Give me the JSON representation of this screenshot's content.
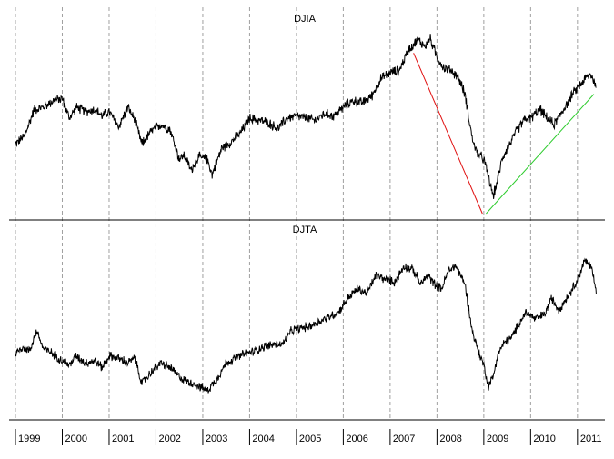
{
  "chart_data": [
    {
      "type": "line",
      "title": "DJIA",
      "xlabel": "",
      "ylabel": "",
      "x_ticks": [
        "1999",
        "2000",
        "2001",
        "2002",
        "2003",
        "2004",
        "2005",
        "2006",
        "2007",
        "2008",
        "2009",
        "2010",
        "2011"
      ],
      "xlim": [
        1999.0,
        2011.45
      ],
      "ylim": [
        6000,
        14500
      ],
      "grid": "vertical-dashed",
      "series": [
        {
          "color": "#000000",
          "x": [
            1999.0,
            1999.2,
            1999.4,
            1999.6,
            1999.8,
            2000.0,
            2000.15,
            2000.3,
            2000.5,
            2000.7,
            2000.85,
            2001.0,
            2001.2,
            2001.4,
            2001.55,
            2001.7,
            2001.9,
            2002.1,
            2002.3,
            2002.5,
            2002.6,
            2002.75,
            2002.9,
            2003.1,
            2003.2,
            2003.4,
            2003.6,
            2003.8,
            2004.0,
            2004.2,
            2004.4,
            2004.6,
            2004.8,
            2005.0,
            2005.2,
            2005.4,
            2005.6,
            2005.8,
            2006.0,
            2006.2,
            2006.4,
            2006.6,
            2006.8,
            2007.0,
            2007.2,
            2007.4,
            2007.6,
            2007.75,
            2007.85,
            2008.0,
            2008.15,
            2008.3,
            2008.45,
            2008.6,
            2008.75,
            2008.85,
            2009.0,
            2009.1,
            2009.2,
            2009.3,
            2009.4,
            2009.55,
            2009.7,
            2009.85,
            2010.0,
            2010.2,
            2010.35,
            2010.5,
            2010.7,
            2010.9,
            2011.0,
            2011.2,
            2011.3,
            2011.4
          ],
          "y": [
            9200,
            9600,
            10800,
            10900,
            11200,
            11300,
            10400,
            10900,
            10700,
            10800,
            10500,
            10700,
            10000,
            10900,
            10300,
            9200,
            9800,
            10100,
            9900,
            8500,
            8700,
            8000,
            8600,
            8500,
            7800,
            9000,
            9300,
            9700,
            10400,
            10300,
            10200,
            9900,
            10400,
            10500,
            10400,
            10300,
            10600,
            10500,
            10900,
            11200,
            11100,
            11400,
            12200,
            12500,
            12600,
            13600,
            14000,
            13700,
            14100,
            13200,
            12700,
            12600,
            12300,
            11500,
            9500,
            8800,
            8500,
            7700,
            6800,
            7600,
            8600,
            9200,
            9800,
            10300,
            10400,
            10800,
            10400,
            10100,
            10800,
            11500,
            11800,
            12300,
            12400,
            11800
          ]
        }
      ],
      "annotations": [
        {
          "type": "trendline",
          "color": "#e01010",
          "x": [
            2007.5,
            2008.97
          ],
          "y": [
            13400,
            6000
          ]
        },
        {
          "type": "trendline",
          "color": "#2ecc2e",
          "x": [
            2009.05,
            2011.35
          ],
          "y": [
            6000,
            11500
          ]
        }
      ]
    },
    {
      "type": "line",
      "title": "DJTA",
      "xlabel": "",
      "ylabel": "",
      "x_ticks": [
        "1999",
        "2000",
        "2001",
        "2002",
        "2003",
        "2004",
        "2005",
        "2006",
        "2007",
        "2008",
        "2009",
        "2010",
        "2011"
      ],
      "xlim": [
        1999.0,
        2011.45
      ],
      "ylim": [
        1900,
        5500
      ],
      "grid": "vertical-dashed",
      "series": [
        {
          "color": "#000000",
          "x": [
            1999.0,
            1999.15,
            1999.3,
            1999.45,
            1999.6,
            1999.8,
            2000.0,
            2000.15,
            2000.3,
            2000.5,
            2000.7,
            2000.85,
            2001.0,
            2001.2,
            2001.4,
            2001.55,
            2001.7,
            2001.9,
            2002.1,
            2002.3,
            2002.5,
            2002.65,
            2002.8,
            2002.9,
            2003.1,
            2003.3,
            2003.5,
            2003.7,
            2003.9,
            2004.1,
            2004.3,
            2004.5,
            2004.7,
            2004.9,
            2005.1,
            2005.3,
            2005.5,
            2005.7,
            2005.9,
            2006.1,
            2006.3,
            2006.5,
            2006.7,
            2006.9,
            2007.1,
            2007.3,
            2007.5,
            2007.65,
            2007.8,
            2007.95,
            2008.1,
            2008.25,
            2008.4,
            2008.5,
            2008.6,
            2008.75,
            2008.9,
            2009.0,
            2009.1,
            2009.2,
            2009.3,
            2009.45,
            2009.6,
            2009.75,
            2009.9,
            2010.1,
            2010.3,
            2010.45,
            2010.6,
            2010.8,
            2011.0,
            2011.15,
            2011.3,
            2011.4
          ],
          "y": [
            3000,
            3150,
            3050,
            3500,
            3100,
            3000,
            2850,
            2750,
            2950,
            2800,
            2850,
            2700,
            2950,
            2900,
            2800,
            2900,
            2350,
            2600,
            2800,
            2700,
            2500,
            2400,
            2350,
            2300,
            2200,
            2450,
            2800,
            2900,
            3000,
            3050,
            3150,
            3200,
            3200,
            3500,
            3550,
            3600,
            3700,
            3800,
            3900,
            4200,
            4400,
            4300,
            4700,
            4600,
            4550,
            4900,
            4800,
            4500,
            4700,
            4500,
            4400,
            4800,
            4900,
            4700,
            4500,
            3500,
            3000,
            2750,
            2300,
            2500,
            3000,
            3250,
            3350,
            3650,
            3900,
            3750,
            3850,
            4200,
            3950,
            4250,
            4600,
            5000,
            4900,
            4300
          ]
        }
      ]
    }
  ]
}
